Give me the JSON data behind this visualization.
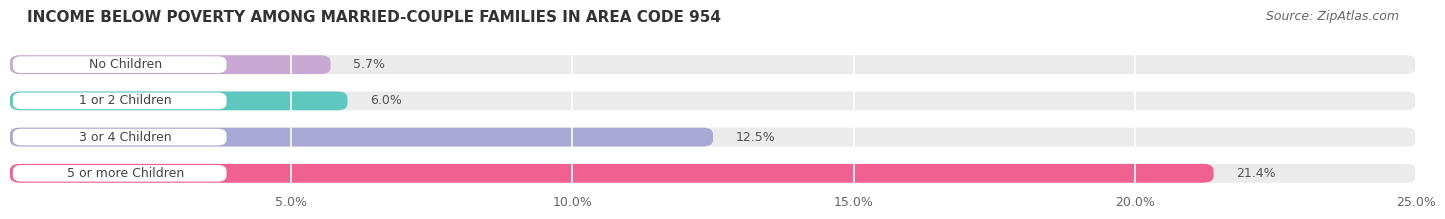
{
  "title": "INCOME BELOW POVERTY AMONG MARRIED-COUPLE FAMILIES IN AREA CODE 954",
  "source": "Source: ZipAtlas.com",
  "categories": [
    "No Children",
    "1 or 2 Children",
    "3 or 4 Children",
    "5 or more Children"
  ],
  "values": [
    5.7,
    6.0,
    12.5,
    21.4
  ],
  "labels": [
    "5.7%",
    "6.0%",
    "12.5%",
    "21.4%"
  ],
  "bar_colors": [
    "#c9a8d4",
    "#5ec8c0",
    "#a8a8d4",
    "#f06090"
  ],
  "bg_color": "#ffffff",
  "bar_bg_color": "#ebebeb",
  "xlim": [
    0,
    25.0
  ],
  "xticks": [
    5.0,
    10.0,
    15.0,
    20.0,
    25.0
  ],
  "xtick_labels": [
    "5.0%",
    "10.0%",
    "15.0%",
    "20.0%",
    "25.0%"
  ],
  "title_fontsize": 11,
  "label_fontsize": 9,
  "tick_fontsize": 9,
  "source_fontsize": 9
}
